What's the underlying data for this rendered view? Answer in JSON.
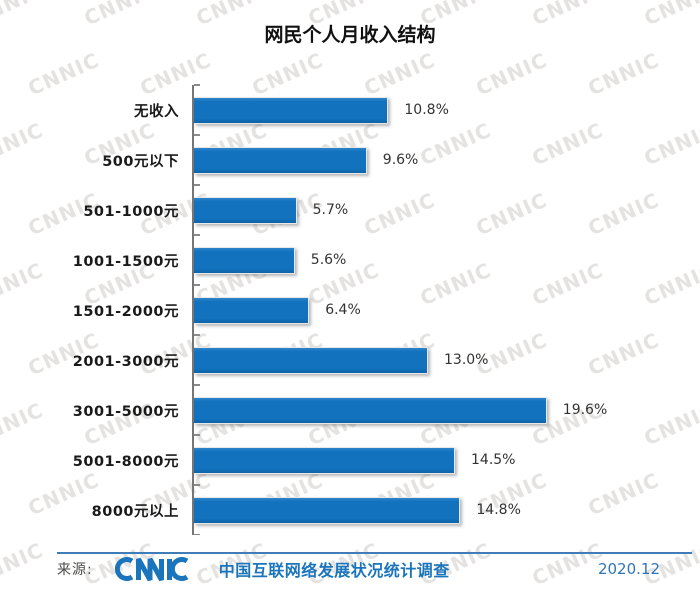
{
  "title": "网民个人月收入结构",
  "chart_data": {
    "type": "bar",
    "orientation": "horizontal",
    "title": "网民个人月收入结构",
    "categories": [
      "无收入",
      "500元以下",
      "501-1000元",
      "1001-1500元",
      "1501-2000元",
      "2001-3000元",
      "3001-5000元",
      "5001-8000元",
      "8000元以上"
    ],
    "values": [
      10.8,
      9.6,
      5.7,
      5.6,
      6.4,
      13.0,
      19.6,
      14.5,
      14.8
    ],
    "value_labels": [
      "10.8%",
      "9.6%",
      "5.7%",
      "5.6%",
      "6.4%",
      "13.0%",
      "19.6%",
      "14.5%",
      "14.8%"
    ],
    "unit": "%",
    "xlim": [
      0,
      21
    ],
    "grid": false,
    "legend": false,
    "bar_color": "#1272BE",
    "axis_color": "#767676"
  },
  "watermark": {
    "text": "CNNIC"
  },
  "footer": {
    "source_label": "来源:",
    "logo_text": "CNNIC",
    "survey_text": "中国互联网络发展状况统计调查",
    "date": "2020.12",
    "accent_color": "#1B75BC"
  }
}
